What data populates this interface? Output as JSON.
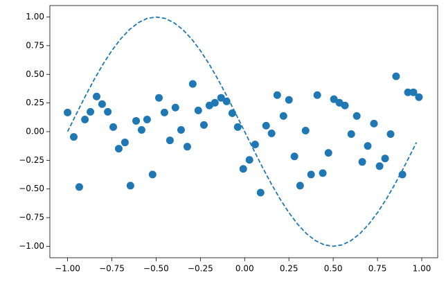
{
  "chart_data": {
    "type": "scatter",
    "x": [
      -1.0,
      -0.965,
      -0.934,
      -0.902,
      -0.871,
      -0.836,
      -0.805,
      -0.773,
      -0.742,
      -0.711,
      -0.676,
      -0.645,
      -0.613,
      -0.582,
      -0.551,
      -0.52,
      -0.484,
      -0.453,
      -0.422,
      -0.391,
      -0.359,
      -0.324,
      -0.293,
      -0.262,
      -0.23,
      -0.199,
      -0.168,
      -0.133,
      -0.102,
      -0.07,
      -0.039,
      -0.008,
      0.027,
      0.059,
      0.09,
      0.121,
      0.152,
      0.184,
      0.219,
      0.25,
      0.281,
      0.313,
      0.344,
      0.375,
      0.41,
      0.441,
      0.473,
      0.504,
      0.535,
      0.566,
      0.602,
      0.633,
      0.664,
      0.695,
      0.73,
      0.762,
      0.793,
      0.824,
      0.855,
      0.891,
      0.922,
      0.953,
      0.984
    ],
    "values": [
      0.167,
      -0.046,
      -0.483,
      0.106,
      0.173,
      0.307,
      0.24,
      0.173,
      0.04,
      -0.149,
      -0.094,
      -0.471,
      0.094,
      0.015,
      0.106,
      -0.374,
      0.295,
      0.167,
      -0.076,
      0.21,
      0.015,
      -0.131,
      0.416,
      0.185,
      0.058,
      0.228,
      0.252,
      0.295,
      0.264,
      0.161,
      0.04,
      -0.325,
      -0.246,
      -0.112,
      -0.532,
      0.052,
      -0.015,
      0.319,
      0.137,
      0.277,
      -0.216,
      -0.471,
      0.009,
      -0.374,
      0.319,
      -0.362,
      -0.185,
      0.283,
      0.252,
      0.228,
      -0.021,
      0.137,
      -0.264,
      -0.125,
      0.07,
      -0.301,
      -0.234,
      -0.021,
      0.483,
      -0.374,
      0.343,
      0.343,
      0.301
    ],
    "color": "#1f77b4",
    "line": {
      "x": [
        -1.0,
        -0.95,
        -0.9,
        -0.85,
        -0.8,
        -0.75,
        -0.7,
        -0.65,
        -0.6,
        -0.55,
        -0.5,
        -0.45,
        -0.4,
        -0.35,
        -0.3,
        -0.25,
        -0.2,
        -0.15,
        -0.1,
        -0.05,
        0.0,
        0.05,
        0.1,
        0.15,
        0.2,
        0.25,
        0.3,
        0.35,
        0.4,
        0.45,
        0.5,
        0.55,
        0.6,
        0.65,
        0.7,
        0.75,
        0.8,
        0.85,
        0.9,
        0.95,
        0.97
      ],
      "values": [
        0.0,
        0.156,
        0.309,
        0.454,
        0.588,
        0.707,
        0.809,
        0.891,
        0.951,
        0.988,
        1.0,
        0.988,
        0.951,
        0.891,
        0.809,
        0.707,
        0.588,
        0.454,
        0.309,
        0.156,
        0.0,
        -0.156,
        -0.309,
        -0.454,
        -0.588,
        -0.707,
        -0.809,
        -0.891,
        -0.951,
        -0.988,
        -1.0,
        -0.988,
        -0.951,
        -0.891,
        -0.809,
        -0.707,
        -0.588,
        -0.454,
        -0.309,
        -0.156,
        -0.094
      ],
      "color": "#1f77b4",
      "style": "dashed"
    },
    "xlim": [
      -1.1,
      1.09
    ],
    "ylim": [
      -1.1,
      1.1
    ],
    "xticks": [
      {
        "value": -1.0,
        "label": "−1.00"
      },
      {
        "value": -0.75,
        "label": "−0.75"
      },
      {
        "value": -0.5,
        "label": "−0.50"
      },
      {
        "value": -0.25,
        "label": "−0.25"
      },
      {
        "value": 0.0,
        "label": "0.00"
      },
      {
        "value": 0.25,
        "label": "0.25"
      },
      {
        "value": 0.5,
        "label": "0.50"
      },
      {
        "value": 0.75,
        "label": "0.75"
      },
      {
        "value": 1.0,
        "label": "1.00"
      }
    ],
    "yticks": [
      {
        "value": -1.0,
        "label": "−1.00"
      },
      {
        "value": -0.75,
        "label": "−0.75"
      },
      {
        "value": -0.5,
        "label": "−0.50"
      },
      {
        "value": -0.25,
        "label": "−0.25"
      },
      {
        "value": 0.0,
        "label": "0.00"
      },
      {
        "value": 0.25,
        "label": "0.25"
      },
      {
        "value": 0.5,
        "label": "0.50"
      },
      {
        "value": 0.75,
        "label": "0.75"
      },
      {
        "value": 1.0,
        "label": "1.00"
      }
    ],
    "grid": false
  }
}
